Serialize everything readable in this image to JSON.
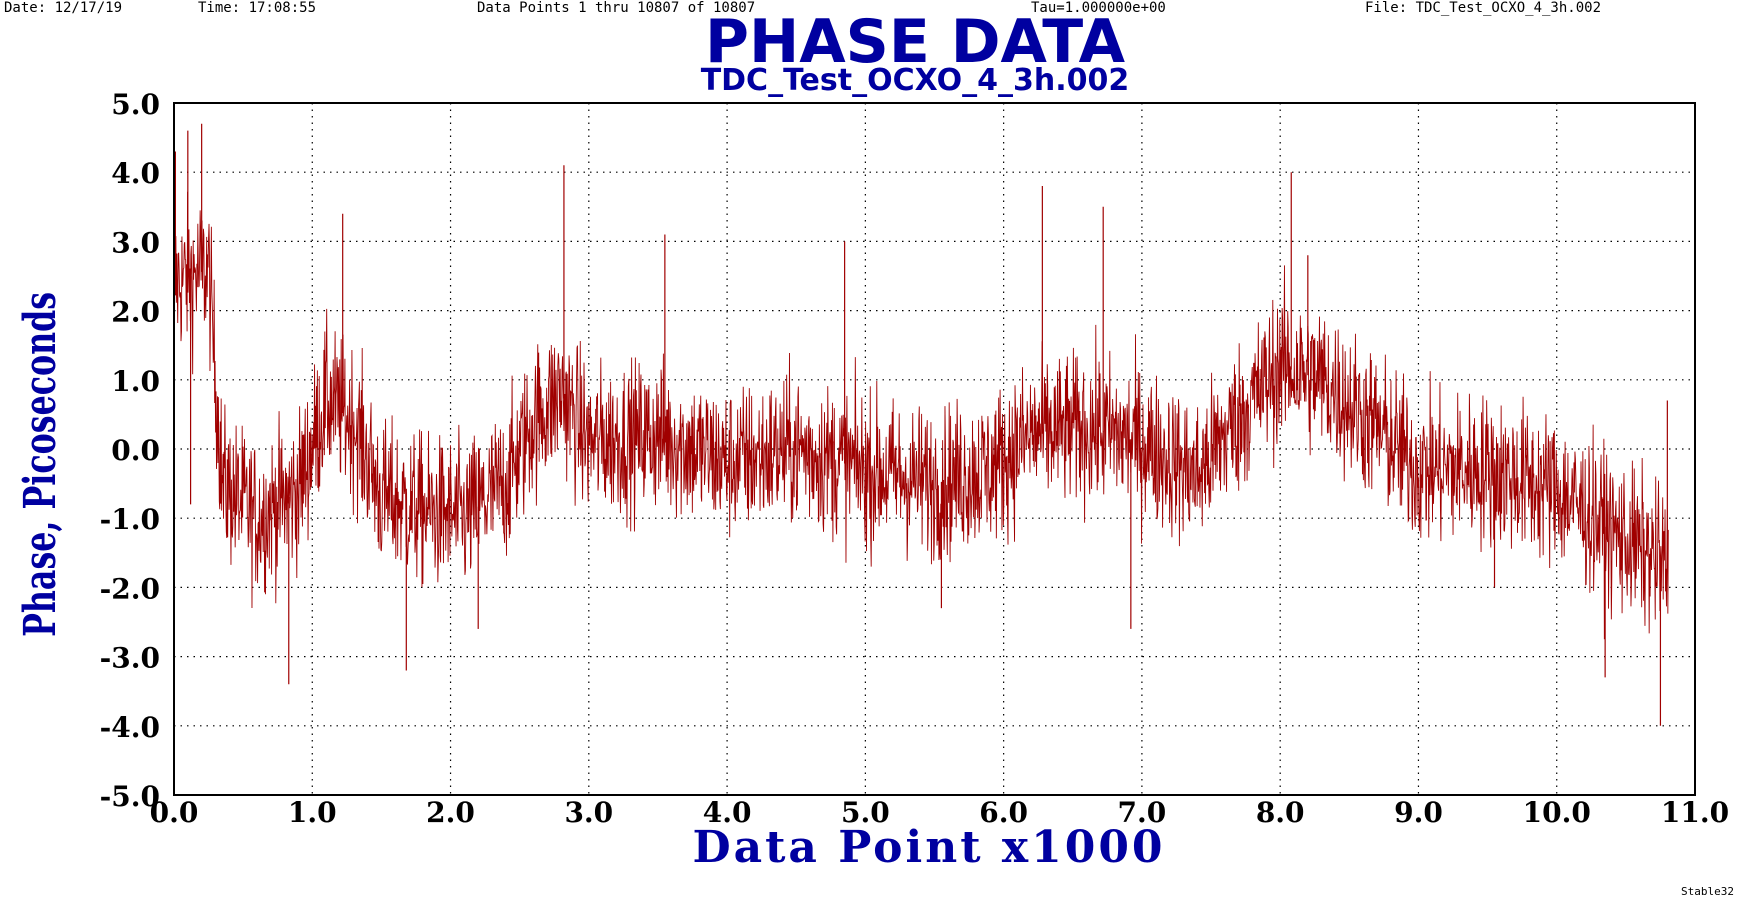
{
  "header": {
    "date": "Date: 12/17/19",
    "time": "Time: 17:08:55",
    "points": "Data Points 1 thru 10807 of 10807",
    "tau": "Tau=1.000000e+00",
    "file": "File: TDC_Test_OCXO_4_3h.002"
  },
  "footer": {
    "brand": "Stable32"
  },
  "colors": {
    "trace": "#a00000",
    "title": "#0000a0",
    "axis": "#000000"
  },
  "chart_data": {
    "type": "line",
    "title": "PHASE DATA",
    "subtitle": "TDC_Test_OCXO_4_3h.002",
    "xlabel": "Data Point x1000",
    "ylabel": "Phase, Picoseconds",
    "xlim": [
      0.0,
      11.0
    ],
    "ylim": [
      -5.0,
      5.0
    ],
    "xticks": [
      "0.0",
      "1.0",
      "2.0",
      "3.0",
      "4.0",
      "5.0",
      "6.0",
      "7.0",
      "8.0",
      "9.0",
      "10.0",
      "11.0"
    ],
    "yticks": [
      "5.0",
      "4.0",
      "3.0",
      "2.0",
      "1.0",
      "0.0",
      "-1.0",
      "-2.0",
      "-3.0",
      "-4.0",
      "-5.0"
    ],
    "grid": true,
    "series": [
      {
        "x_end": 10.807,
        "trend": [
          [
            0.0,
            2.4
          ],
          [
            0.25,
            2.6
          ],
          [
            0.35,
            -0.5
          ],
          [
            0.6,
            -1.0
          ],
          [
            0.9,
            -0.6
          ],
          [
            1.1,
            0.7
          ],
          [
            1.3,
            0.4
          ],
          [
            1.5,
            -0.7
          ],
          [
            1.8,
            -0.9
          ],
          [
            2.1,
            -1.0
          ],
          [
            2.4,
            -0.5
          ],
          [
            2.6,
            0.4
          ],
          [
            2.8,
            0.8
          ],
          [
            3.0,
            0.1
          ],
          [
            3.5,
            0.2
          ],
          [
            4.0,
            -0.2
          ],
          [
            4.5,
            0.0
          ],
          [
            5.0,
            -0.3
          ],
          [
            5.5,
            -0.5
          ],
          [
            5.9,
            -0.3
          ],
          [
            6.2,
            0.2
          ],
          [
            6.6,
            0.3
          ],
          [
            7.0,
            0.1
          ],
          [
            7.4,
            -0.4
          ],
          [
            7.6,
            0.2
          ],
          [
            8.0,
            1.2
          ],
          [
            8.3,
            1.0
          ],
          [
            8.7,
            0.3
          ],
          [
            9.0,
            -0.3
          ],
          [
            9.5,
            -0.3
          ],
          [
            10.0,
            -0.6
          ],
          [
            10.4,
            -1.2
          ],
          [
            10.8,
            -1.7
          ]
        ],
        "spikes": [
          [
            0.01,
            4.3
          ],
          [
            0.1,
            4.6
          ],
          [
            0.2,
            4.7
          ],
          [
            0.12,
            -0.8
          ],
          [
            0.83,
            -3.4
          ],
          [
            1.22,
            3.4
          ],
          [
            1.68,
            -3.2
          ],
          [
            2.2,
            -2.6
          ],
          [
            2.82,
            4.1
          ],
          [
            3.55,
            3.1
          ],
          [
            4.85,
            3.0
          ],
          [
            5.55,
            -2.3
          ],
          [
            6.28,
            3.8
          ],
          [
            6.72,
            3.5
          ],
          [
            6.92,
            -2.6
          ],
          [
            8.08,
            4.0
          ],
          [
            8.2,
            2.8
          ],
          [
            9.55,
            -2.0
          ],
          [
            10.35,
            -3.3
          ],
          [
            10.75,
            -4.0
          ],
          [
            10.8,
            0.7
          ]
        ]
      }
    ]
  }
}
